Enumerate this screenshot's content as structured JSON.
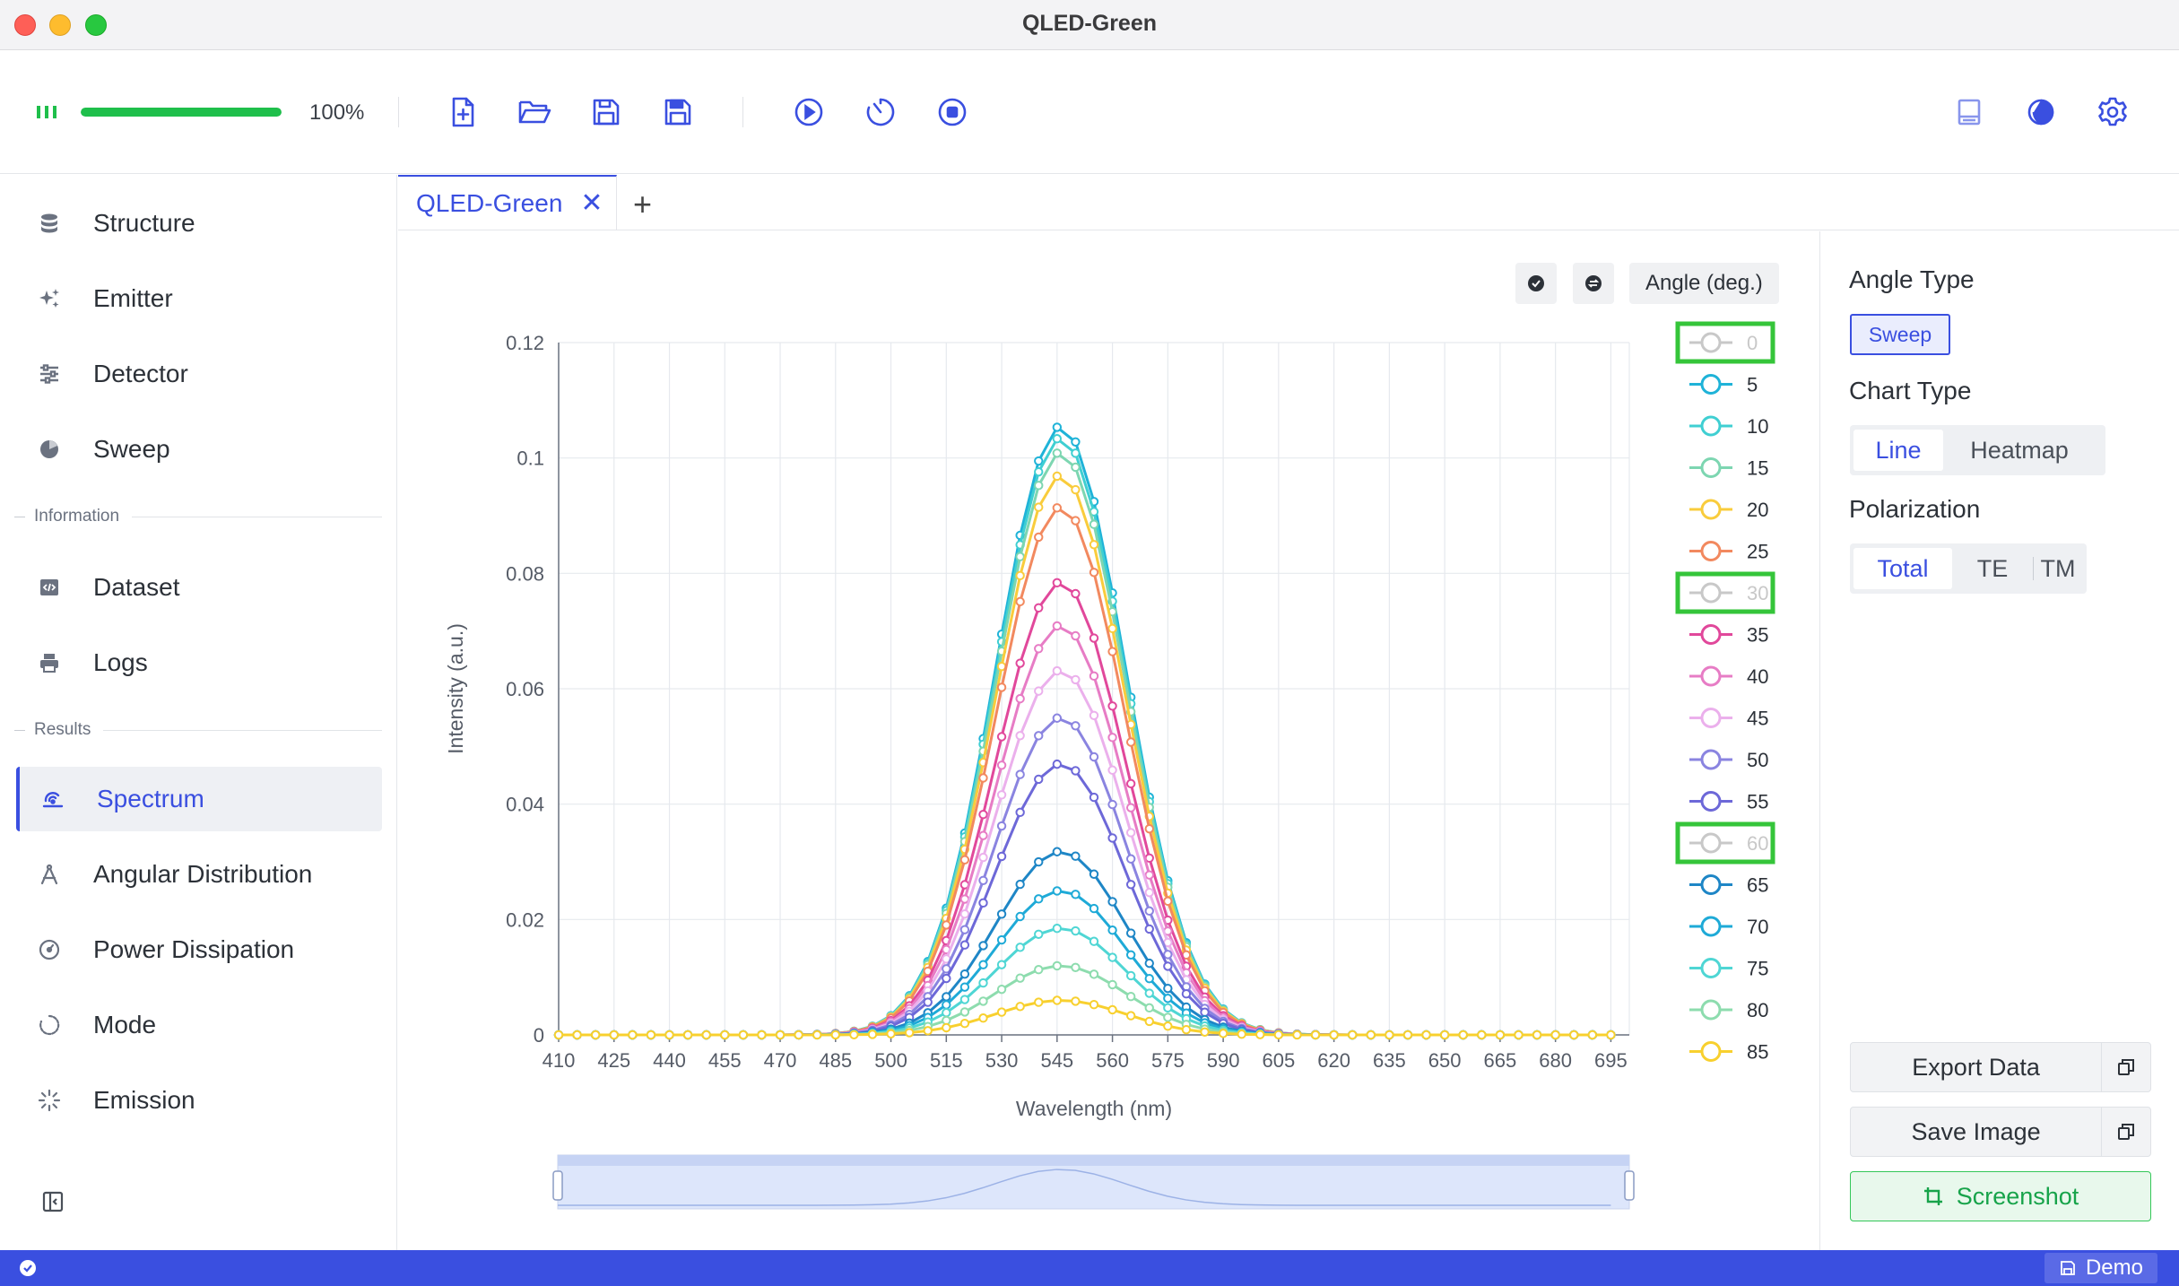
{
  "window": {
    "title": "QLED-Green"
  },
  "toolbar": {
    "progress_percent": 100,
    "progress_label": "100%"
  },
  "sidebar": {
    "items_top": [
      {
        "label": "Structure",
        "icon": "database-icon"
      },
      {
        "label": "Emitter",
        "icon": "sparkles-icon"
      },
      {
        "label": "Detector",
        "icon": "sliders-icon"
      },
      {
        "label": "Sweep",
        "icon": "pie-icon"
      }
    ],
    "section_information": "Information",
    "items_info": [
      {
        "label": "Dataset",
        "icon": "code-file-icon"
      },
      {
        "label": "Logs",
        "icon": "printer-icon"
      }
    ],
    "section_results": "Results",
    "items_results": [
      {
        "label": "Spectrum",
        "icon": "spectrum-icon",
        "active": true
      },
      {
        "label": "Angular Distribution",
        "icon": "compass-icon"
      },
      {
        "label": "Power Dissipation",
        "icon": "gauge-icon"
      },
      {
        "label": "Mode",
        "icon": "loader-icon"
      },
      {
        "label": "Emission",
        "icon": "burst-icon"
      }
    ]
  },
  "tabs": [
    {
      "label": "QLED-Green",
      "close": "✕"
    }
  ],
  "tab_add": "+",
  "chart_controls": {
    "angle_button": "Angle (deg.)"
  },
  "chart_data": {
    "type": "line",
    "xlabel": "Wavelength (nm)",
    "ylabel": "Intensity (a.u.)",
    "xlim": [
      410,
      700
    ],
    "ylim": [
      0,
      0.12
    ],
    "x_ticks": [
      410,
      425,
      440,
      455,
      470,
      485,
      500,
      515,
      530,
      545,
      560,
      575,
      590,
      605,
      620,
      635,
      650,
      665,
      680,
      695
    ],
    "y_ticks": [
      0,
      0.02,
      0.04,
      0.06,
      0.08,
      0.1,
      0.12
    ],
    "y_tick_labels": [
      "0",
      "0.02",
      "0.04",
      "0.06",
      "0.08",
      "0.1",
      "0.12"
    ],
    "x_start": 410,
    "x_step": 5,
    "x_count": 58,
    "peak_wavelength": 546,
    "peak_width_sigma": 17.5,
    "series": [
      {
        "name": "0",
        "peak": 0.105,
        "color": "#c8c8c8",
        "hidden": true
      },
      {
        "name": "5",
        "peak": 0.1055,
        "color": "#1fb3d8"
      },
      {
        "name": "10",
        "peak": 0.1035,
        "color": "#3fcfd2"
      },
      {
        "name": "15",
        "peak": 0.101,
        "color": "#7dd6b1"
      },
      {
        "name": "20",
        "peak": 0.097,
        "color": "#f9cc3c"
      },
      {
        "name": "25",
        "peak": 0.0915,
        "color": "#f2895f"
      },
      {
        "name": "30",
        "peak": 0.085,
        "color": "#c8c8c8",
        "hidden": true
      },
      {
        "name": "35",
        "peak": 0.0785,
        "color": "#e1489b"
      },
      {
        "name": "40",
        "peak": 0.071,
        "color": "#e77cc5"
      },
      {
        "name": "45",
        "peak": 0.0632,
        "color": "#ebb0ec"
      },
      {
        "name": "50",
        "peak": 0.055,
        "color": "#8a84e0"
      },
      {
        "name": "55",
        "peak": 0.047,
        "color": "#6d68d8"
      },
      {
        "name": "60",
        "peak": 0.039,
        "color": "#c8c8c8",
        "hidden": true
      },
      {
        "name": "65",
        "peak": 0.0318,
        "color": "#1e86c6"
      },
      {
        "name": "70",
        "peak": 0.025,
        "color": "#1eaad7"
      },
      {
        "name": "75",
        "peak": 0.0185,
        "color": "#4fd6d4"
      },
      {
        "name": "80",
        "peak": 0.012,
        "color": "#8ddcae"
      },
      {
        "name": "85",
        "peak": 0.006,
        "color": "#f8d02e"
      }
    ],
    "legend_placement": "right",
    "grid": true
  },
  "right_panel": {
    "angle_type_heading": "Angle Type",
    "sweep_label": "Sweep",
    "chart_type_heading": "Chart Type",
    "chart_type_options": [
      "Line",
      "Heatmap"
    ],
    "polarization_heading": "Polarization",
    "polarization_options": [
      "Total",
      "TE",
      "TM"
    ],
    "export_label": "Export Data",
    "save_label": "Save Image",
    "screenshot_label": "Screenshot"
  },
  "status": {
    "demo_label": "Demo"
  },
  "colors": {
    "accent": "#3a4fe0",
    "progress": "#1fbf4b",
    "highlight": "#35c53a"
  }
}
